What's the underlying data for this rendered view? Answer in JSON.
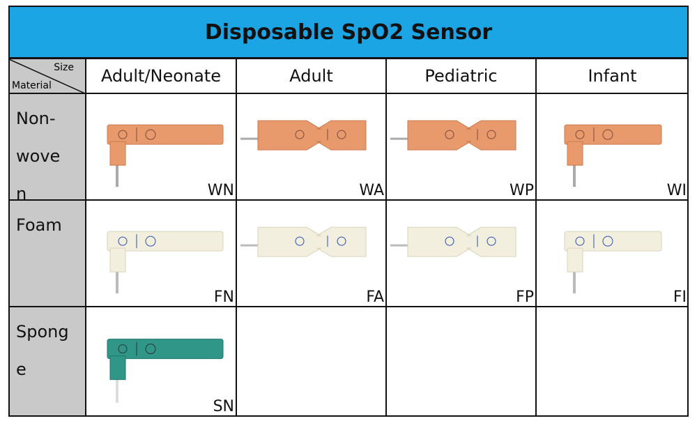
{
  "header": {
    "title": "Disposable SpO2 Sensor"
  },
  "table": {
    "corner": {
      "size": "Size",
      "material": "Material"
    },
    "columns": [
      "Adult/Neonate",
      "Adult",
      "Pediatric",
      "Infant"
    ],
    "rows": [
      {
        "material": "Non-woven",
        "codes": [
          "WN",
          "WA",
          "WP",
          "WI"
        ]
      },
      {
        "material": "Foam",
        "codes": [
          "FN",
          "FA",
          "FP",
          "FI"
        ]
      },
      {
        "material": "Sponge",
        "codes": [
          "SN"
        ]
      }
    ]
  }
}
